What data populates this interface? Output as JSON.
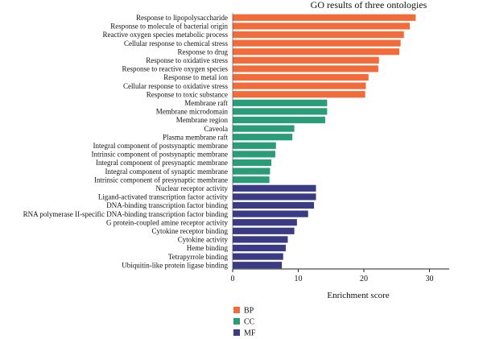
{
  "chart_data": {
    "type": "bar",
    "orientation": "horizontal",
    "title": "GO results of three ontologies",
    "xlabel": "Enrichment score",
    "ylabel": "",
    "xlim": [
      0,
      33
    ],
    "xticks": [
      0,
      10,
      20,
      30
    ],
    "grid": false,
    "legend_position": "bottom-left",
    "colors": {
      "BP": "#f26b3a",
      "CC": "#2a9d78",
      "MF": "#3b3a85"
    },
    "legend": [
      {
        "key": "BP",
        "label": "BP"
      },
      {
        "key": "CC",
        "label": "CC"
      },
      {
        "key": "MF",
        "label": "MF"
      }
    ],
    "bars": [
      {
        "label": "Response to lipopolysaccharide",
        "value": 27.9,
        "group": "BP"
      },
      {
        "label": "Response to molecule of bacterial origin",
        "value": 27.0,
        "group": "BP"
      },
      {
        "label": "Reactive oxygen species metabolic process",
        "value": 26.1,
        "group": "BP"
      },
      {
        "label": "Cellular response to chemical stress",
        "value": 25.6,
        "group": "BP"
      },
      {
        "label": "Response to drug",
        "value": 25.4,
        "group": "BP"
      },
      {
        "label": "Response to oxidative stress",
        "value": 22.3,
        "group": "BP"
      },
      {
        "label": "Response to reactive oxygen species",
        "value": 22.2,
        "group": "BP"
      },
      {
        "label": "Response to metal ion",
        "value": 20.7,
        "group": "BP"
      },
      {
        "label": "Cellular response to oxidative stress",
        "value": 20.3,
        "group": "BP"
      },
      {
        "label": "Response to toxic substance",
        "value": 20.2,
        "group": "BP"
      },
      {
        "label": "Membrane raft",
        "value": 14.4,
        "group": "CC"
      },
      {
        "label": "Membrane microdomain",
        "value": 14.4,
        "group": "CC"
      },
      {
        "label": "Membrane region",
        "value": 14.1,
        "group": "CC"
      },
      {
        "label": "Caveola",
        "value": 9.4,
        "group": "CC"
      },
      {
        "label": "Plasma membrane raft",
        "value": 9.1,
        "group": "CC"
      },
      {
        "label": "Integral component of postsynaptic membrane",
        "value": 6.6,
        "group": "CC"
      },
      {
        "label": "Intrinsic component of postsynaptic membrane",
        "value": 6.5,
        "group": "CC"
      },
      {
        "label": "Integral component of presynaptic membrane",
        "value": 5.9,
        "group": "CC"
      },
      {
        "label": "Integral component of synaptic membrane",
        "value": 5.7,
        "group": "CC"
      },
      {
        "label": "Intrinsic component of presynaptic membrane",
        "value": 5.6,
        "group": "CC"
      },
      {
        "label": "Nuclear receptor activity",
        "value": 12.7,
        "group": "MF"
      },
      {
        "label": "Ligand-activated transcription factor activity",
        "value": 12.7,
        "group": "MF"
      },
      {
        "label": "DNA-binding transcription factor binding",
        "value": 12.4,
        "group": "MF"
      },
      {
        "label": "RNA polymerase II-specific DNA-binding transcription factor binding",
        "value": 11.5,
        "group": "MF"
      },
      {
        "label": "G protein-coupled amine receptor activity",
        "value": 9.8,
        "group": "MF"
      },
      {
        "label": "Cytokine receptor binding",
        "value": 9.4,
        "group": "MF"
      },
      {
        "label": "Cytokine activity",
        "value": 8.4,
        "group": "MF"
      },
      {
        "label": "Heme binding",
        "value": 8.1,
        "group": "MF"
      },
      {
        "label": "Tetrapyrrole binding",
        "value": 7.7,
        "group": "MF"
      },
      {
        "label": "Ubiquitin-like protein ligase binding",
        "value": 7.5,
        "group": "MF"
      }
    ]
  }
}
